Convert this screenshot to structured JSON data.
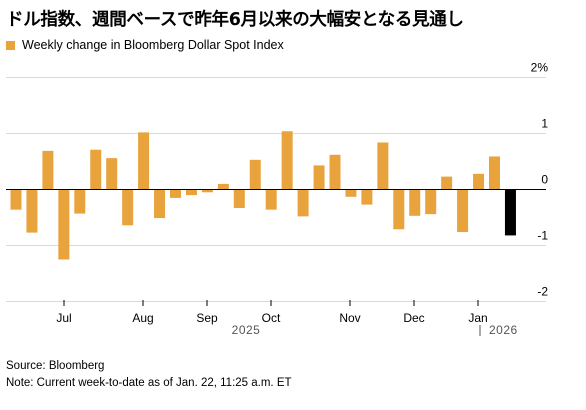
{
  "title": "ドル指数、週間ベースで昨年6月以来の大幅安となる見通し",
  "legend_label": "Weekly change in Bloomberg Dollar Spot Index",
  "source": "Source: Bloomberg",
  "note": "Note: Current week-to-date as of Jan. 22, 11:25 a.m. ET",
  "colors": {
    "bar": "#e8a33d",
    "current_bar": "#000000",
    "grid": "#d9d9d9",
    "axis": "#000000"
  },
  "chart_data": {
    "type": "bar",
    "title": "ドル指数、週間ベースで昨年6月以来の大幅安となる見通し",
    "legend": "Weekly change in Bloomberg Dollar Spot Index",
    "ylim": [
      -2,
      2
    ],
    "yticks": [
      2,
      1,
      0,
      -1,
      -2
    ],
    "ytick_labels": [
      "2%",
      "1",
      "0",
      "-1",
      "-2"
    ],
    "grid": true,
    "month_labels": [
      "Jul",
      "Aug",
      "Sep",
      "Oct",
      "Nov",
      "Dec",
      "Jan"
    ],
    "year_labels": [
      "2025",
      "2026"
    ],
    "values": [
      -0.36,
      -0.77,
      0.69,
      -1.25,
      -0.43,
      0.71,
      0.56,
      -0.64,
      1.02,
      -0.51,
      -0.15,
      -0.1,
      -0.05,
      0.1,
      -0.33,
      0.53,
      -0.36,
      1.04,
      -0.48,
      0.43,
      0.62,
      -0.13,
      -0.27,
      0.84,
      -0.71,
      -0.47,
      -0.44,
      0.23,
      -0.76,
      0.28,
      0.59,
      -0.82
    ],
    "current_week_index": 31
  }
}
